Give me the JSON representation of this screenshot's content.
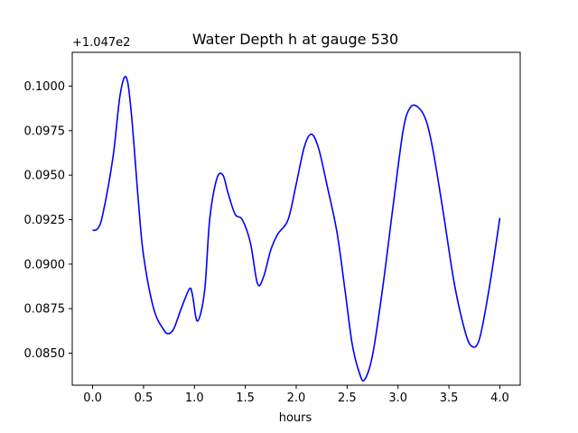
{
  "chart_data": {
    "type": "line",
    "title": "Water Depth h at gauge 530",
    "xlabel": "hours",
    "ylabel": "",
    "y_offset_label": "+1.047e2",
    "xlim": [
      -0.2,
      4.2
    ],
    "ylim": [
      0.0832,
      0.1019
    ],
    "x_ticks": [
      0.0,
      0.5,
      1.0,
      1.5,
      2.0,
      2.5,
      3.0,
      3.5,
      4.0
    ],
    "x_tick_labels": [
      "0.0",
      "0.5",
      "1.0",
      "1.5",
      "2.0",
      "2.5",
      "3.0",
      "3.5",
      "4.0"
    ],
    "y_ticks": [
      0.085,
      0.0875,
      0.09,
      0.0925,
      0.095,
      0.0975,
      0.1
    ],
    "y_tick_labels": [
      "0.0850",
      "0.0875",
      "0.0900",
      "0.0925",
      "0.0950",
      "0.0975",
      "0.1000"
    ],
    "grid": false,
    "series": [
      {
        "color": "#0000ff",
        "x": [
          0.0,
          0.05,
          0.1,
          0.2,
          0.27,
          0.33,
          0.38,
          0.45,
          0.5,
          0.6,
          0.7,
          0.75,
          0.8,
          0.87,
          0.95,
          0.98,
          1.03,
          1.1,
          1.15,
          1.22,
          1.28,
          1.33,
          1.4,
          1.47,
          1.55,
          1.62,
          1.68,
          1.75,
          1.82,
          1.92,
          2.0,
          2.08,
          2.15,
          2.22,
          2.3,
          2.4,
          2.48,
          2.55,
          2.62,
          2.67,
          2.75,
          2.85,
          2.95,
          3.05,
          3.12,
          3.2,
          3.28,
          3.35,
          3.45,
          3.55,
          3.65,
          3.72,
          3.8,
          3.9,
          4.0
        ],
        "y": [
          0.0919,
          0.092,
          0.0928,
          0.096,
          0.0995,
          0.1005,
          0.0985,
          0.0935,
          0.0905,
          0.0875,
          0.0863,
          0.0861,
          0.0864,
          0.0875,
          0.0886,
          0.0883,
          0.0868,
          0.0885,
          0.0925,
          0.0948,
          0.095,
          0.094,
          0.0928,
          0.0925,
          0.0912,
          0.0889,
          0.0893,
          0.0908,
          0.0917,
          0.0925,
          0.0945,
          0.0966,
          0.0973,
          0.0965,
          0.0945,
          0.0918,
          0.0885,
          0.0855,
          0.0839,
          0.0835,
          0.0849,
          0.0887,
          0.0932,
          0.0975,
          0.0988,
          0.0988,
          0.098,
          0.0962,
          0.0927,
          0.089,
          0.0864,
          0.0854,
          0.0858,
          0.0888,
          0.0926
        ]
      }
    ]
  }
}
